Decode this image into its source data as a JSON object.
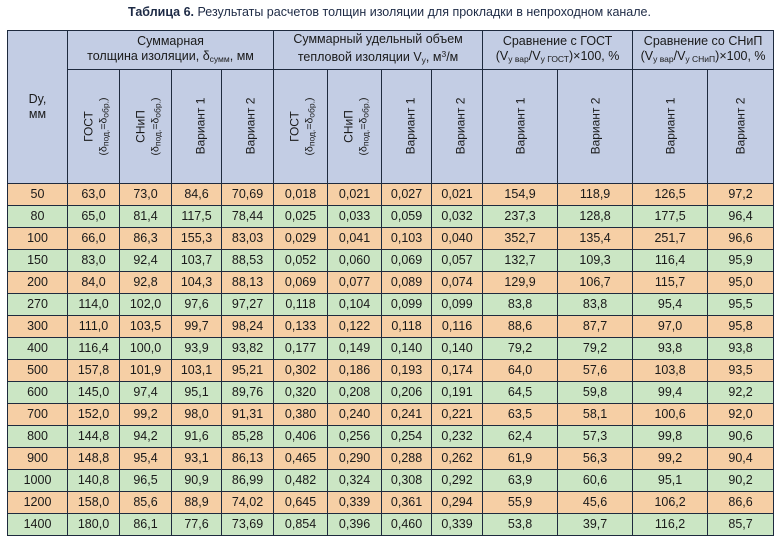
{
  "caption": {
    "prefix": "Таблица 6.",
    "text": "Результаты расчетов толщин изоляции для прокладки в непроходном канале."
  },
  "header": {
    "dy_label_line1": "Dy,",
    "dy_label_line2": "мм",
    "group1": {
      "line1": "Суммарная",
      "line2": "толщина изоляции, δ",
      "sub": "сумм",
      "line2_end": ", мм"
    },
    "group2": {
      "line1": "Суммарный удельный объем",
      "line2": "тепловой изоляции V",
      "sub": "у",
      "line2_end": ", м",
      "sup": "3",
      "end": "/м"
    },
    "group3": {
      "line1": "Сравнение с ГОСТ",
      "line2_open": "(V",
      "sub1": "у вар",
      "mid": "/V",
      "sub2": "у ГОСТ",
      "end": ")×100, %"
    },
    "group4": {
      "line1": "Сравнение со СНиП",
      "line2_open": "(V",
      "sub1": "у вар",
      "mid": "/V",
      "sub2": "у СНиП",
      "end": ")×100, %"
    },
    "gost": "ГОСТ",
    "snip": "СНиП",
    "formula": "(δ",
    "formula_sub1": "под.",
    "formula_mid": "=δ",
    "formula_sub2": "обр.",
    "formula_end": ")",
    "var1": "Вариант 1",
    "var2": "Вариант 2"
  },
  "rows": [
    [
      "50",
      "63,0",
      "73,0",
      "84,6",
      "70,69",
      "0,018",
      "0,021",
      "0,027",
      "0,021",
      "154,9",
      "118,9",
      "126,5",
      "97,2"
    ],
    [
      "80",
      "65,0",
      "81,4",
      "117,5",
      "78,44",
      "0,025",
      "0,033",
      "0,059",
      "0,032",
      "237,3",
      "128,8",
      "177,5",
      "96,4"
    ],
    [
      "100",
      "66,0",
      "86,3",
      "155,3",
      "83,03",
      "0,029",
      "0,041",
      "0,103",
      "0,040",
      "352,7",
      "135,4",
      "251,7",
      "96,6"
    ],
    [
      "150",
      "83,0",
      "92,4",
      "103,7",
      "88,53",
      "0,052",
      "0,060",
      "0,069",
      "0,057",
      "132,7",
      "109,3",
      "116,4",
      "95,9"
    ],
    [
      "200",
      "84,0",
      "92,8",
      "104,3",
      "88,13",
      "0,069",
      "0,077",
      "0,089",
      "0,074",
      "129,9",
      "106,7",
      "115,7",
      "95,0"
    ],
    [
      "270",
      "114,0",
      "102,0",
      "97,6",
      "97,27",
      "0,118",
      "0,104",
      "0,099",
      "0,099",
      "83,8",
      "83,8",
      "95,4",
      "95,5"
    ],
    [
      "300",
      "111,0",
      "103,5",
      "99,7",
      "98,24",
      "0,133",
      "0,122",
      "0,118",
      "0,116",
      "88,6",
      "87,7",
      "97,0",
      "95,8"
    ],
    [
      "400",
      "116,4",
      "100,0",
      "93,9",
      "93,82",
      "0,177",
      "0,149",
      "0,140",
      "0,140",
      "79,2",
      "79,2",
      "93,8",
      "93,8"
    ],
    [
      "500",
      "157,8",
      "101,9",
      "103,1",
      "95,21",
      "0,302",
      "0,186",
      "0,193",
      "0,174",
      "64,0",
      "57,6",
      "103,8",
      "93,5"
    ],
    [
      "600",
      "145,0",
      "97,4",
      "95,1",
      "89,76",
      "0,320",
      "0,208",
      "0,206",
      "0,191",
      "64,5",
      "59,8",
      "99,4",
      "92,2"
    ],
    [
      "700",
      "152,0",
      "99,2",
      "98,0",
      "91,31",
      "0,380",
      "0,240",
      "0,241",
      "0,221",
      "63,5",
      "58,1",
      "100,6",
      "92,0"
    ],
    [
      "800",
      "144,8",
      "94,2",
      "91,6",
      "85,28",
      "0,406",
      "0,256",
      "0,254",
      "0,232",
      "62,4",
      "57,3",
      "99,8",
      "90,6"
    ],
    [
      "900",
      "148,8",
      "95,4",
      "93,1",
      "86,13",
      "0,465",
      "0,290",
      "0,288",
      "0,262",
      "61,9",
      "56,3",
      "99,2",
      "90,4"
    ],
    [
      "1000",
      "140,8",
      "96,5",
      "90,9",
      "86,99",
      "0,482",
      "0,324",
      "0,308",
      "0,292",
      "63,9",
      "60,6",
      "95,1",
      "90,2"
    ],
    [
      "1200",
      "158,0",
      "85,6",
      "88,9",
      "74,02",
      "0,645",
      "0,339",
      "0,361",
      "0,294",
      "55,9",
      "45,6",
      "106,2",
      "86,6"
    ],
    [
      "1400",
      "180,0",
      "86,1",
      "77,6",
      "73,69",
      "0,854",
      "0,396",
      "0,460",
      "0,339",
      "53,8",
      "39,7",
      "116,2",
      "85,7"
    ]
  ],
  "row_colors": {
    "odd": "#f6cfa5",
    "even": "#cbe6c4",
    "header": "#c3cde4"
  }
}
